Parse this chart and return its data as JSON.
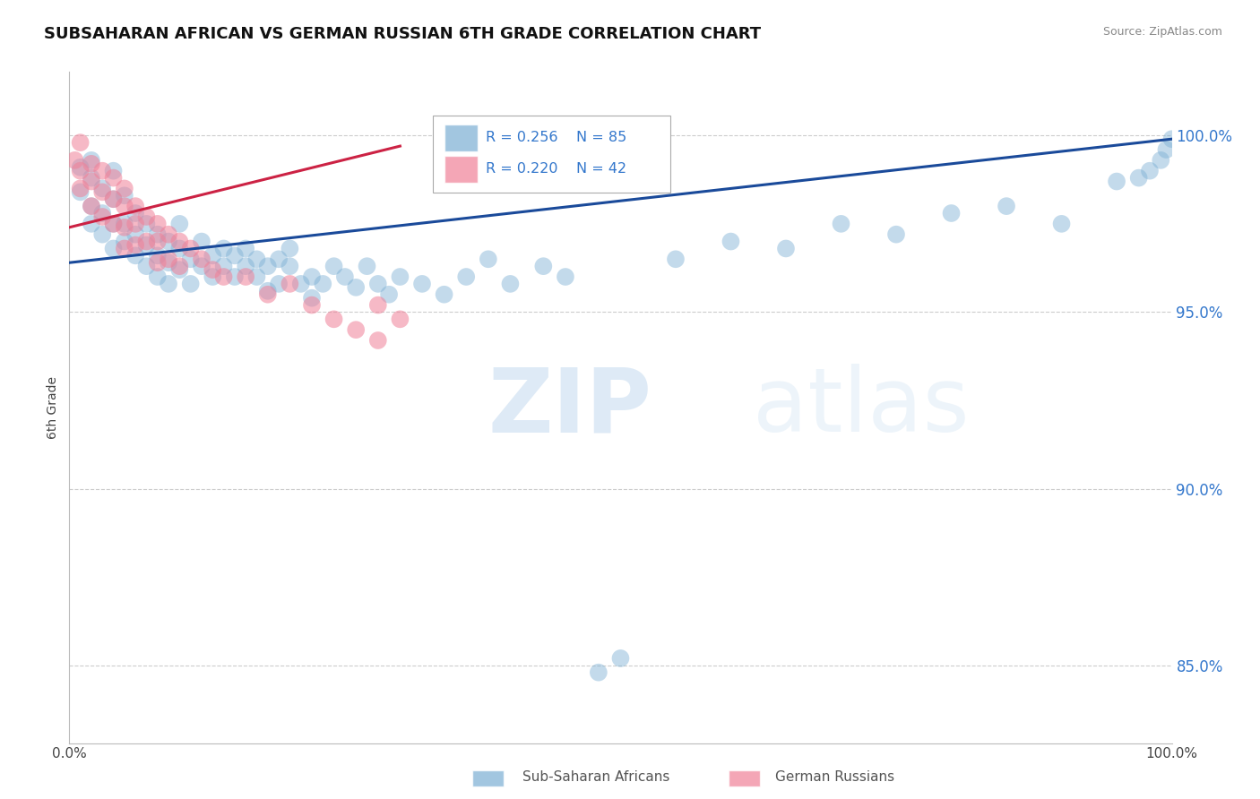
{
  "title": "SUBSAHARAN AFRICAN VS GERMAN RUSSIAN 6TH GRADE CORRELATION CHART",
  "source": "Source: ZipAtlas.com",
  "ylabel": "6th Grade",
  "yticks": [
    0.85,
    0.9,
    0.95,
    1.0
  ],
  "ytick_labels": [
    "85.0%",
    "90.0%",
    "95.0%",
    "100.0%"
  ],
  "xmin": 0.0,
  "xmax": 1.0,
  "ymin": 0.828,
  "ymax": 1.018,
  "blue_R": 0.256,
  "blue_N": 85,
  "pink_R": 0.22,
  "pink_N": 42,
  "blue_color": "#7bafd4",
  "pink_color": "#f08098",
  "blue_line_color": "#1a4a9a",
  "pink_line_color": "#cc2244",
  "legend_R_color": "#3377cc",
  "blue_scatter_x": [
    0.01,
    0.01,
    0.02,
    0.02,
    0.02,
    0.02,
    0.03,
    0.03,
    0.03,
    0.04,
    0.04,
    0.04,
    0.04,
    0.05,
    0.05,
    0.05,
    0.06,
    0.06,
    0.06,
    0.07,
    0.07,
    0.07,
    0.08,
    0.08,
    0.08,
    0.09,
    0.09,
    0.09,
    0.1,
    0.1,
    0.1,
    0.11,
    0.11,
    0.12,
    0.12,
    0.13,
    0.13,
    0.14,
    0.14,
    0.15,
    0.15,
    0.16,
    0.16,
    0.17,
    0.17,
    0.18,
    0.18,
    0.19,
    0.19,
    0.2,
    0.2,
    0.21,
    0.22,
    0.22,
    0.23,
    0.24,
    0.25,
    0.26,
    0.27,
    0.28,
    0.29,
    0.3,
    0.32,
    0.34,
    0.36,
    0.38,
    0.4,
    0.43,
    0.45,
    0.48,
    0.5,
    0.55,
    0.6,
    0.65,
    0.7,
    0.75,
    0.8,
    0.85,
    0.9,
    0.95,
    0.97,
    0.98,
    0.99,
    0.995,
    1.0
  ],
  "blue_scatter_y": [
    0.984,
    0.991,
    0.98,
    0.988,
    0.975,
    0.993,
    0.978,
    0.985,
    0.972,
    0.982,
    0.975,
    0.968,
    0.99,
    0.975,
    0.983,
    0.97,
    0.978,
    0.972,
    0.966,
    0.975,
    0.969,
    0.963,
    0.972,
    0.966,
    0.96,
    0.97,
    0.964,
    0.958,
    0.968,
    0.962,
    0.975,
    0.965,
    0.958,
    0.963,
    0.97,
    0.966,
    0.96,
    0.968,
    0.963,
    0.966,
    0.96,
    0.968,
    0.963,
    0.965,
    0.96,
    0.963,
    0.956,
    0.965,
    0.958,
    0.963,
    0.968,
    0.958,
    0.96,
    0.954,
    0.958,
    0.963,
    0.96,
    0.957,
    0.963,
    0.958,
    0.955,
    0.96,
    0.958,
    0.955,
    0.96,
    0.965,
    0.958,
    0.963,
    0.96,
    0.848,
    0.852,
    0.965,
    0.97,
    0.968,
    0.975,
    0.972,
    0.978,
    0.98,
    0.975,
    0.987,
    0.988,
    0.99,
    0.993,
    0.996,
    0.999
  ],
  "pink_scatter_x": [
    0.005,
    0.01,
    0.01,
    0.01,
    0.02,
    0.02,
    0.02,
    0.03,
    0.03,
    0.03,
    0.04,
    0.04,
    0.04,
    0.05,
    0.05,
    0.05,
    0.05,
    0.06,
    0.06,
    0.06,
    0.07,
    0.07,
    0.08,
    0.08,
    0.08,
    0.09,
    0.09,
    0.1,
    0.1,
    0.11,
    0.12,
    0.13,
    0.14,
    0.16,
    0.18,
    0.2,
    0.22,
    0.24,
    0.26,
    0.28,
    0.28,
    0.3
  ],
  "pink_scatter_y": [
    0.993,
    0.998,
    0.99,
    0.985,
    0.992,
    0.987,
    0.98,
    0.99,
    0.984,
    0.977,
    0.988,
    0.982,
    0.975,
    0.985,
    0.98,
    0.974,
    0.968,
    0.98,
    0.975,
    0.969,
    0.977,
    0.97,
    0.975,
    0.97,
    0.964,
    0.972,
    0.965,
    0.97,
    0.963,
    0.968,
    0.965,
    0.962,
    0.96,
    0.96,
    0.955,
    0.958,
    0.952,
    0.948,
    0.945,
    0.952,
    0.942,
    0.948
  ],
  "blue_line_x0": 0.0,
  "blue_line_x1": 1.0,
  "blue_line_y0": 0.964,
  "blue_line_y1": 0.999,
  "pink_line_x0": 0.0,
  "pink_line_x1": 0.3,
  "pink_line_y0": 0.974,
  "pink_line_y1": 0.997
}
